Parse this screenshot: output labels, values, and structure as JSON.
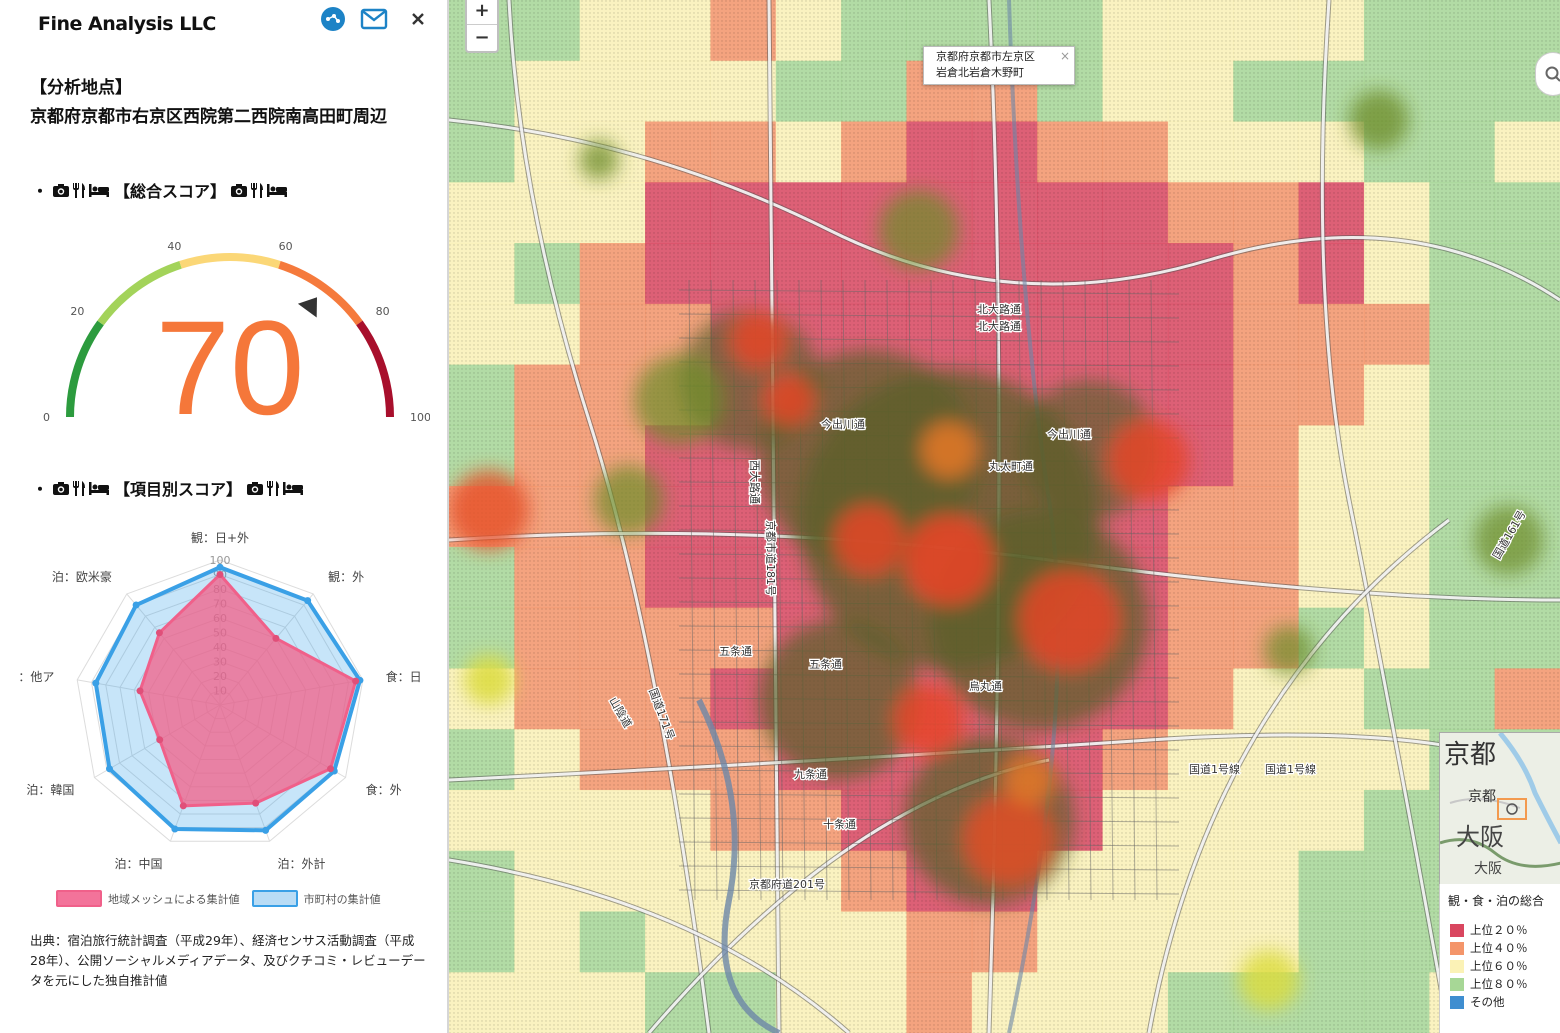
{
  "header": {
    "brand": "Fine Analysis LLC"
  },
  "analysis": {
    "label": "【分析地点】",
    "location": "京都府京都市右京区西院第二西院南高田町周辺"
  },
  "overall": {
    "heading": "【総合スコア】",
    "score": "70",
    "value": 70,
    "ticks": [
      {
        "v": 0,
        "t": "0"
      },
      {
        "v": 20,
        "t": "20"
      },
      {
        "v": 40,
        "t": "40"
      },
      {
        "v": 60,
        "t": "60"
      },
      {
        "v": 80,
        "t": "80"
      },
      {
        "v": 100,
        "t": "100"
      }
    ]
  },
  "items_heading": "【項目別スコア】",
  "radar": {
    "axes": [
      "観：日+外",
      "観：外",
      "食：日",
      "食：外",
      "泊：外計",
      "泊：中国",
      "泊：韓国",
      "泊：他ア",
      "泊：欧米豪"
    ],
    "ticks": [
      "100",
      "90",
      "80",
      "70",
      "60",
      "50",
      "40",
      "30",
      "20",
      "10"
    ],
    "mesh": [
      90,
      60,
      95,
      88,
      72,
      74,
      48,
      56,
      65
    ],
    "city": [
      95,
      94,
      98,
      91,
      92,
      91,
      88,
      87,
      90
    ],
    "legend_mesh": "地域メッシュによる集計値",
    "legend_city": "市町村の集計値"
  },
  "source": "出典：宿泊旅行統計調査（平成29年）、経済センサス活動調査（平成28年）、公開ソーシャルメディアデータ、及びクチコミ・レビューデータを元にした独自推計値",
  "map": {
    "zoom_in": "+",
    "zoom_out": "−",
    "popup_line1": "京都府京都市左京区",
    "popup_line2": "岩倉北岩倉木野町",
    "popup_close": "×",
    "road_labels": [
      "北大路通",
      "北大路通",
      "今出川通",
      "今出川通",
      "丸太町通",
      "烏丸通",
      "西大路通",
      "京都市道181号",
      "五条通",
      "五条通",
      "九条通",
      "十条通",
      "国道1号線",
      "国道1号線",
      "国道171号",
      "国道161号",
      "山陰道",
      "京都府道201号"
    ],
    "minimap": {
      "t1": "京都",
      "t2": "京都",
      "t3": "大阪",
      "t4": "大阪"
    },
    "legend": {
      "title": "観・食・泊の総合",
      "items": [
        {
          "label": "上位２０％",
          "color": "#d9465f"
        },
        {
          "label": "上位４０％",
          "color": "#f4956a"
        },
        {
          "label": "上位６０％",
          "color": "#fbf2b6"
        },
        {
          "label": "上位８０％",
          "color": "#a7d796"
        },
        {
          "label": "その他",
          "color": "#3f8ed0"
        }
      ]
    }
  }
}
